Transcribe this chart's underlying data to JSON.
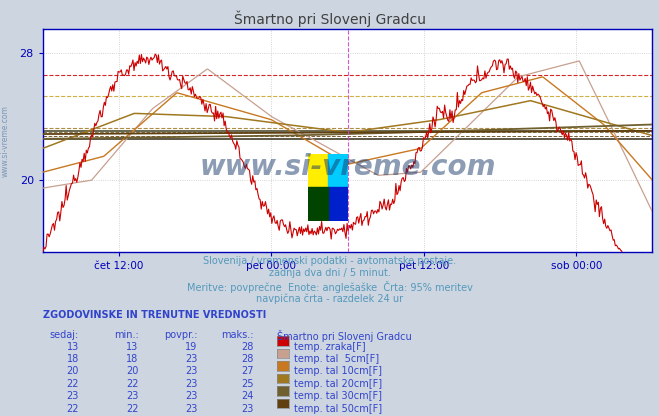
{
  "title": "Šmartno pri Slovenj Gradcu",
  "bg_color": "#ccd5e0",
  "plot_bg_color": "#ffffff",
  "grid_color": "#c8c8c8",
  "xlabel_ticks": [
    "čet 12:00",
    "pet 00:00",
    "pet 12:00",
    "sob 00:00"
  ],
  "xlabel_tick_positions": [
    0.125,
    0.375,
    0.625,
    0.875
  ],
  "ylim": [
    15.5,
    29.5
  ],
  "title_color": "#404040",
  "title_fontsize": 10,
  "axis_color": "#0000bb",
  "tick_color": "#0000bb",
  "subtitle_lines": [
    "Slovenija / vremenski podatki - avtomatske postaje.",
    "zadnja dva dni / 5 minut.",
    "Meritve: povprečne  Enote: anglešaške  Črta: 95% meritev",
    "navpična črta - razdelek 24 ur"
  ],
  "subtitle_color": "#5599bb",
  "subtitle_fontsize": 7,
  "table_header": "ZGODOVINSKE IN TRENUTNE VREDNOSTI",
  "table_col_headers": [
    "sedaj:",
    "min.:",
    "povpr.:",
    "maks.:"
  ],
  "table_station": "Šmartno pri Slovenj Gradcu",
  "table_data": [
    {
      "sedaj": 13,
      "min": 13,
      "povpr": 19,
      "maks": 28,
      "color": "#cc0000",
      "label": "temp. zraka[F]"
    },
    {
      "sedaj": 18,
      "min": 18,
      "povpr": 23,
      "maks": 28,
      "color": "#c8a090",
      "label": "temp. tal  5cm[F]"
    },
    {
      "sedaj": 20,
      "min": 20,
      "povpr": 23,
      "maks": 27,
      "color": "#c87820",
      "label": "temp. tal 10cm[F]"
    },
    {
      "sedaj": 22,
      "min": 22,
      "povpr": 23,
      "maks": 25,
      "color": "#a07820",
      "label": "temp. tal 20cm[F]"
    },
    {
      "sedaj": 23,
      "min": 23,
      "povpr": 23,
      "maks": 24,
      "color": "#706030",
      "label": "temp. tal 30cm[F]"
    },
    {
      "sedaj": 22,
      "min": 22,
      "povpr": 23,
      "maks": 23,
      "color": "#604010",
      "label": "temp. tal 50cm[F]"
    }
  ],
  "hlines": [
    {
      "y": 26.6,
      "color": "#cc0000",
      "ls": "--",
      "lw": 0.8
    },
    {
      "y": 25.3,
      "color": "#c8a020",
      "ls": "--",
      "lw": 0.8
    },
    {
      "y": 23.3,
      "color": "#a07820",
      "ls": "--",
      "lw": 0.8
    },
    {
      "y": 23.0,
      "color": "#706030",
      "ls": "--",
      "lw": 0.7
    },
    {
      "y": 22.8,
      "color": "#604010",
      "ls": "--",
      "lw": 0.7
    },
    {
      "y": 23.1,
      "color": "#303010",
      "ls": "-",
      "lw": 1.2
    },
    {
      "y": 22.6,
      "color": "#201800",
      "ls": "-",
      "lw": 1.2
    }
  ],
  "vline_color": "#cc44cc",
  "vline_positions": [
    0.5,
    0.999
  ],
  "watermark_text": "www.si-vreme.com",
  "watermark_color": "#1a3a6a",
  "watermark_alpha": 0.5,
  "watermark_fontsize": 20,
  "logo_colors": [
    "#ffee00",
    "#00ccff",
    "#0020cc",
    "#004400"
  ],
  "sidevreme_color": "#6688aa",
  "N": 576
}
